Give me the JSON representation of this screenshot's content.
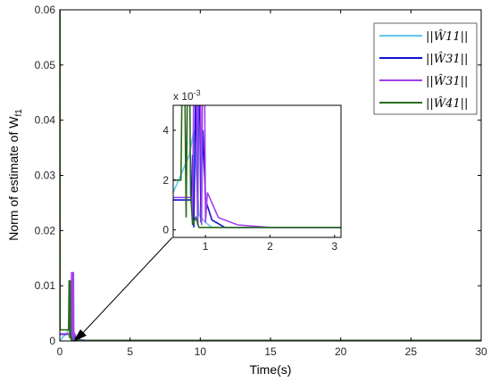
{
  "chart_data": [
    {
      "type": "line",
      "xlabel": "Time(s)",
      "ylabel": "Norm of estimate of W",
      "ylabel_sub": "f1",
      "xlim": [
        0,
        30
      ],
      "ylim": [
        0,
        0.06
      ],
      "xticks": [
        "0",
        "5",
        "10",
        "15",
        "20",
        "25",
        "30"
      ],
      "yticks": [
        "0",
        "0.01",
        "0.02",
        "0.03",
        "0.04",
        "0.05",
        "0.06"
      ],
      "grid": false,
      "legend_position": "top-right",
      "series": [
        {
          "name": "||Ŵ11||",
          "color": "#5fc8e8",
          "x": [
            0,
            0.5,
            0.75,
            0.82,
            0.9,
            1.0,
            1.1,
            2,
            30
          ],
          "y": [
            0,
            0.0015,
            0.003,
            0.004,
            0.0006,
            0.0003,
            0.0001,
            0.0001,
            0.0001
          ]
        },
        {
          "name": "||Ŵ31||",
          "color": "#1010d8",
          "x": [
            0,
            0.78,
            0.8,
            0.82,
            0.85,
            0.88,
            0.9,
            0.93,
            0.96,
            1.0,
            1.1,
            1.3,
            2,
            30
          ],
          "y": [
            0.0012,
            0.0012,
            0.003,
            0.0001,
            0.006,
            0.0002,
            0.008,
            0.0003,
            0.004,
            0.0012,
            0.0004,
            0.0001,
            0.0001,
            0.0001
          ]
        },
        {
          "name": "||Ŵ31||",
          "color": "#a040ee",
          "x": [
            0,
            0.78,
            0.8,
            0.84,
            0.88,
            0.9,
            0.94,
            0.97,
            1.0,
            1.03,
            1.2,
            1.5,
            2,
            30
          ],
          "y": [
            0.0013,
            0.0013,
            0.0005,
            0.0125,
            0.0003,
            0.0125,
            0.0002,
            0.0125,
            0.0003,
            0.0015,
            0.0005,
            0.0002,
            0.0001,
            0.0001
          ]
        },
        {
          "name": "||Ŵ41||",
          "color": "#2a6a1e",
          "x": [
            0,
            0.01,
            0.02,
            0.5,
            0.62,
            0.66,
            0.7,
            0.74,
            0.77,
            0.8,
            0.85,
            0.9,
            1.0,
            1.2,
            2,
            30
          ],
          "y": [
            0.06,
            0.06,
            0.002,
            0.002,
            0.002,
            0.011,
            0.0005,
            0.011,
            0.0015,
            0.0002,
            0.0005,
            0.0001,
            0.0001,
            0.0001,
            0.0001,
            0.0001
          ]
        }
      ]
    },
    {
      "type": "line",
      "title": "x 10",
      "title_exponent": "-3",
      "xlim": [
        0.5,
        3.1
      ],
      "ylim": [
        -0.3,
        5
      ],
      "xticks": [
        "1",
        "2",
        "3"
      ],
      "yticks": [
        "0",
        "2",
        "4"
      ]
    }
  ]
}
